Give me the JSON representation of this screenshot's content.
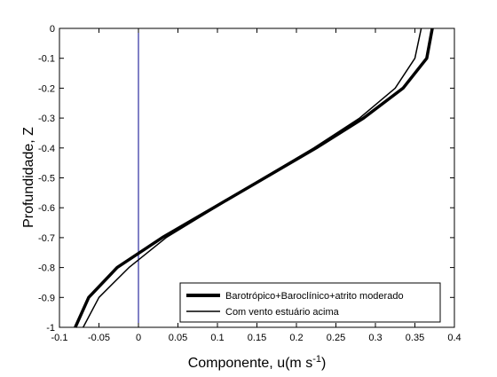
{
  "chart_data": {
    "type": "line",
    "title": "",
    "xlabel": {
      "main": "Componente, u(m s",
      "sup": "-1",
      "close": ")"
    },
    "ylabel": "Profundidade, Z",
    "xlim": [
      -0.1,
      0.4
    ],
    "ylim": [
      -1,
      0
    ],
    "xticks": [
      -0.1,
      -0.05,
      0,
      0.05,
      0.1,
      0.15,
      0.2,
      0.25,
      0.3,
      0.35,
      0.4
    ],
    "xtick_labels": [
      "-0.1",
      "-0.05",
      "0",
      "0.05",
      "0.1",
      "0.15",
      "0.2",
      "0.25",
      "0.3",
      "0.35",
      "0.4"
    ],
    "yticks": [
      0,
      -0.1,
      -0.2,
      -0.3,
      -0.4,
      -0.5,
      -0.6,
      -0.7,
      -0.8,
      -0.9,
      -1
    ],
    "ytick_labels": [
      "0",
      "-0.1",
      "-0.2",
      "-0.3",
      "-0.4",
      "-0.5",
      "-0.6",
      "-0.7",
      "-0.8",
      "-0.9",
      "-1"
    ],
    "grid": false,
    "legend_position": "bottom-right",
    "reference_line": {
      "x": 0,
      "color": "#00008b"
    },
    "series": [
      {
        "name": "Barotrópico+Baroclínico+atrito moderado",
        "color": "#000000",
        "weight": "thick",
        "points": [
          [
            0.372,
            0
          ],
          [
            0.365,
            -0.1
          ],
          [
            0.335,
            -0.2
          ],
          [
            0.285,
            -0.3
          ],
          [
            0.225,
            -0.4
          ],
          [
            0.16,
            -0.5
          ],
          [
            0.095,
            -0.6
          ],
          [
            0.03,
            -0.7
          ],
          [
            -0.027,
            -0.8
          ],
          [
            -0.063,
            -0.9
          ],
          [
            -0.08,
            -1
          ]
        ]
      },
      {
        "name": "Com vento estuário acima",
        "color": "#000000",
        "weight": "thin",
        "points": [
          [
            0.358,
            0
          ],
          [
            0.35,
            -0.1
          ],
          [
            0.325,
            -0.2
          ],
          [
            0.28,
            -0.3
          ],
          [
            0.222,
            -0.4
          ],
          [
            0.158,
            -0.5
          ],
          [
            0.097,
            -0.6
          ],
          [
            0.035,
            -0.7
          ],
          [
            -0.012,
            -0.8
          ],
          [
            -0.05,
            -0.9
          ],
          [
            -0.07,
            -1
          ]
        ]
      }
    ]
  }
}
